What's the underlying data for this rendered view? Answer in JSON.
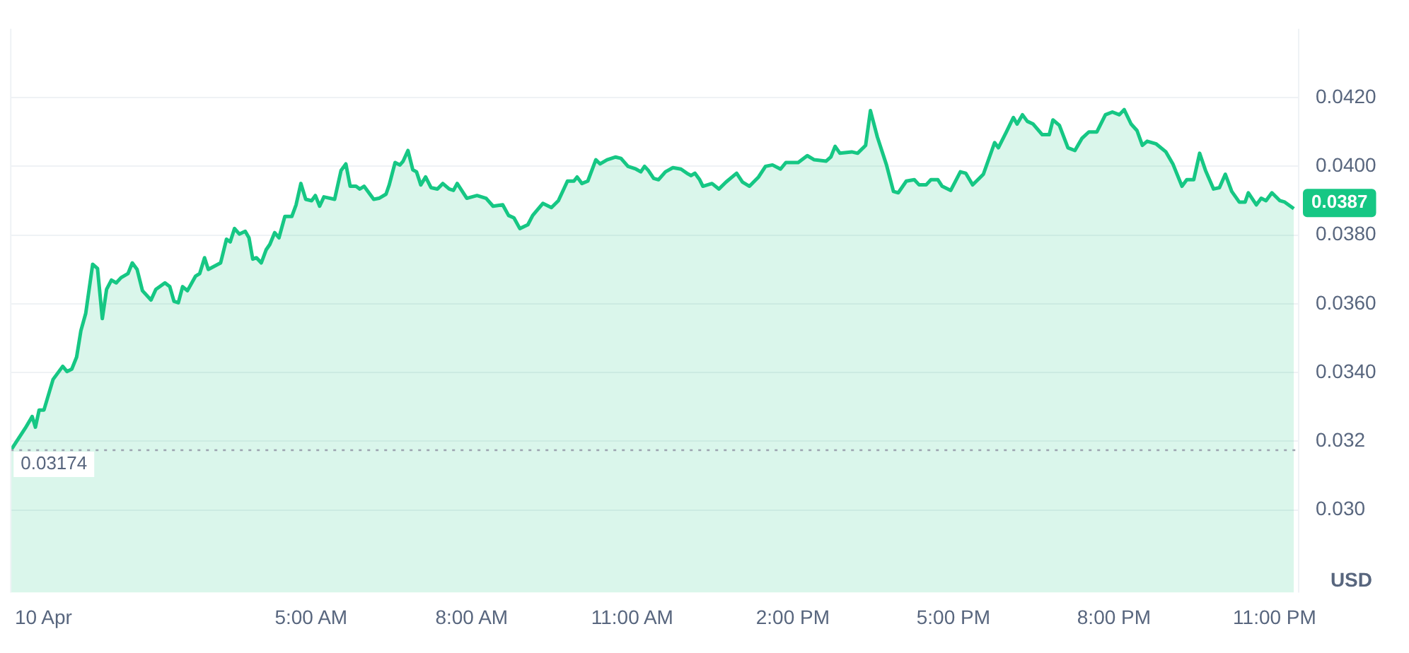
{
  "chart_data": {
    "type": "area",
    "ylabel": "USD",
    "legend": false,
    "grid": "y",
    "marker": "none",
    "line_style": "solid",
    "xlim": [
      -0.61,
      23.45
    ],
    "ylim": [
      0.0276,
      0.044
    ],
    "xticks": [
      {
        "value": 0,
        "label": "10 Apr"
      },
      {
        "value": 5,
        "label": "5:00 AM"
      },
      {
        "value": 8,
        "label": "8:00 AM"
      },
      {
        "value": 11,
        "label": "11:00 AM"
      },
      {
        "value": 14,
        "label": "2:00 PM"
      },
      {
        "value": 17,
        "label": "5:00 PM"
      },
      {
        "value": 20,
        "label": "8:00 PM"
      },
      {
        "value": 23,
        "label": "11:00 PM"
      }
    ],
    "yticks": [
      {
        "value": 0.03,
        "label": "0.030"
      },
      {
        "value": 0.032,
        "label": "0.032"
      },
      {
        "value": 0.034,
        "label": "0.0340"
      },
      {
        "value": 0.036,
        "label": "0.0360"
      },
      {
        "value": 0.038,
        "label": "0.0380"
      },
      {
        "value": 0.04,
        "label": "0.0400"
      },
      {
        "value": 0.042,
        "label": "0.0420"
      }
    ],
    "ref_lines": [
      {
        "axis": "y",
        "value": 0.03174,
        "label": "0.03174",
        "color": "#9ca3af",
        "line_style": "dotted"
      }
    ],
    "annotations": [
      "0.0387"
    ],
    "series": [
      {
        "color": "#16c784",
        "x": [
          -0.6,
          -0.34,
          -0.21,
          -0.15,
          -0.08,
          0.01,
          0.18,
          0.36,
          0.44,
          0.53,
          0.62,
          0.7,
          0.79,
          0.92,
          1.01,
          1.1,
          1.18,
          1.27,
          1.36,
          1.45,
          1.58,
          1.66,
          1.75,
          1.85,
          2.01,
          2.1,
          2.27,
          2.36,
          2.44,
          2.52,
          2.6,
          2.69,
          2.84,
          2.92,
          3.01,
          3.08,
          3.31,
          3.42,
          3.49,
          3.57,
          3.66,
          3.77,
          3.84,
          3.91,
          3.98,
          4.07,
          4.16,
          4.23,
          4.32,
          4.4,
          4.51,
          4.64,
          4.72,
          4.81,
          4.9,
          5.01,
          5.08,
          5.16,
          5.24,
          5.44,
          5.56,
          5.65,
          5.73,
          5.84,
          5.91,
          5.99,
          6.17,
          6.27,
          6.4,
          6.46,
          6.57,
          6.66,
          6.72,
          6.81,
          6.9,
          6.97,
          7.05,
          7.14,
          7.24,
          7.36,
          7.46,
          7.58,
          7.66,
          7.73,
          7.91,
          8.1,
          8.27,
          8.4,
          8.58,
          8.69,
          8.79,
          8.9,
          9.05,
          9.14,
          9.33,
          9.49,
          9.62,
          9.79,
          9.91,
          9.97,
          10.06,
          10.17,
          10.32,
          10.4,
          10.53,
          10.69,
          10.79,
          10.92,
          11.07,
          11.16,
          11.23,
          11.3,
          11.4,
          11.49,
          11.62,
          11.76,
          11.91,
          12.02,
          12.1,
          12.17,
          12.26,
          12.32,
          12.49,
          12.62,
          12.75,
          12.95,
          13.06,
          13.19,
          13.36,
          13.49,
          13.62,
          13.77,
          13.87,
          14.1,
          14.27,
          14.4,
          14.62,
          14.71,
          14.79,
          14.88,
          15.1,
          15.21,
          15.36,
          15.45,
          15.58,
          15.75,
          15.88,
          15.97,
          16.12,
          16.27,
          16.36,
          16.49,
          16.58,
          16.71,
          16.79,
          16.95,
          17.13,
          17.23,
          17.36,
          17.56,
          17.77,
          17.84,
          17.99,
          18.12,
          18.19,
          18.29,
          18.38,
          18.49,
          18.66,
          18.79,
          18.86,
          18.98,
          19.14,
          19.27,
          19.4,
          19.53,
          19.68,
          19.84,
          19.97,
          20.1,
          20.19,
          20.32,
          20.43,
          20.53,
          20.62,
          20.79,
          20.97,
          21.1,
          21.27,
          21.36,
          21.49,
          21.6,
          21.71,
          21.86,
          21.97,
          22.08,
          22.2,
          22.34,
          22.45,
          22.51,
          22.66,
          22.75,
          22.84,
          22.95,
          23.1,
          23.19,
          23.36
        ],
        "values": [
          0.03176,
          0.03238,
          0.03272,
          0.03241,
          0.03291,
          0.03291,
          0.0338,
          0.03418,
          0.03403,
          0.0341,
          0.03445,
          0.03522,
          0.03572,
          0.03715,
          0.03703,
          0.03557,
          0.03642,
          0.03669,
          0.03661,
          0.03676,
          0.03688,
          0.03719,
          0.037,
          0.03638,
          0.03611,
          0.03642,
          0.03661,
          0.0365,
          0.03607,
          0.03603,
          0.0365,
          0.03638,
          0.0368,
          0.03688,
          0.03734,
          0.037,
          0.03719,
          0.03788,
          0.0378,
          0.03819,
          0.03803,
          0.03811,
          0.03792,
          0.0373,
          0.03734,
          0.03719,
          0.03757,
          0.03773,
          0.03807,
          0.03792,
          0.03854,
          0.03854,
          0.03888,
          0.0395,
          0.03904,
          0.039,
          0.03915,
          0.03884,
          0.03911,
          0.03904,
          0.03988,
          0.04007,
          0.03942,
          0.03942,
          0.03934,
          0.03942,
          0.03904,
          0.03907,
          0.03919,
          0.03946,
          0.04011,
          0.04004,
          0.04015,
          0.04046,
          0.0399,
          0.03984,
          0.03946,
          0.03969,
          0.03938,
          0.03934,
          0.0395,
          0.03934,
          0.0393,
          0.0395,
          0.03907,
          0.03915,
          0.03907,
          0.03884,
          0.03888,
          0.03857,
          0.0385,
          0.03819,
          0.0383,
          0.03857,
          0.03892,
          0.0388,
          0.039,
          0.03957,
          0.03957,
          0.03969,
          0.0395,
          0.03957,
          0.04019,
          0.04007,
          0.04019,
          0.04027,
          0.04023,
          0.04,
          0.03992,
          0.03984,
          0.04,
          0.03988,
          0.03965,
          0.03961,
          0.03984,
          0.03996,
          0.03992,
          0.0398,
          0.03973,
          0.0398,
          0.03961,
          0.03942,
          0.0395,
          0.03934,
          0.03954,
          0.0398,
          0.03954,
          0.03942,
          0.03969,
          0.04,
          0.04004,
          0.03992,
          0.04011,
          0.04011,
          0.04031,
          0.04019,
          0.04015,
          0.04027,
          0.04058,
          0.04038,
          0.04042,
          0.04038,
          0.04061,
          0.04162,
          0.04085,
          0.04004,
          0.03927,
          0.03923,
          0.03957,
          0.03961,
          0.03946,
          0.03946,
          0.03961,
          0.03961,
          0.03942,
          0.0393,
          0.03984,
          0.0398,
          0.03946,
          0.03977,
          0.04069,
          0.04054,
          0.041,
          0.04142,
          0.04123,
          0.0415,
          0.04131,
          0.04123,
          0.04092,
          0.04092,
          0.04135,
          0.04119,
          0.04054,
          0.04046,
          0.04081,
          0.041,
          0.041,
          0.0415,
          0.04158,
          0.0415,
          0.04165,
          0.04123,
          0.04104,
          0.04061,
          0.04073,
          0.04065,
          0.04042,
          0.04007,
          0.03942,
          0.03961,
          0.03961,
          0.04038,
          0.03988,
          0.03934,
          0.03938,
          0.03977,
          0.03927,
          0.03896,
          0.03896,
          0.03923,
          0.03888,
          0.03907,
          0.039,
          0.03923,
          0.039,
          0.03896,
          0.03877
        ]
      }
    ]
  }
}
